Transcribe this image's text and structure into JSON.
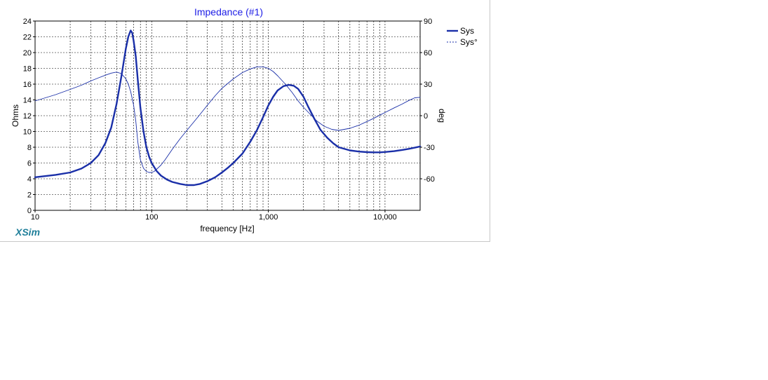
{
  "app": {
    "brand": "XSim"
  },
  "chart_data": {
    "type": "line",
    "title": "Impedance (#1)",
    "xlabel": "frequency [Hz]",
    "ylabel": "Ohms",
    "y2label": "deg",
    "xscale": "log",
    "xlim": [
      10,
      20000
    ],
    "ylim": [
      0,
      24
    ],
    "y2lim": [
      -90,
      90
    ],
    "grid": true,
    "legend_position": "top-right",
    "x_ticks": [
      {
        "value": 10,
        "label": "10"
      },
      {
        "value": 100,
        "label": "100"
      },
      {
        "value": 1000,
        "label": "1,000"
      },
      {
        "value": 10000,
        "label": "10,000"
      }
    ],
    "y_ticks": [
      {
        "value": 0,
        "label": "0"
      },
      {
        "value": 2,
        "label": "2"
      },
      {
        "value": 4,
        "label": "4"
      },
      {
        "value": 6,
        "label": "6"
      },
      {
        "value": 8,
        "label": "8"
      },
      {
        "value": 10,
        "label": "10"
      },
      {
        "value": 12,
        "label": "12"
      },
      {
        "value": 14,
        "label": "14"
      },
      {
        "value": 16,
        "label": "16"
      },
      {
        "value": 18,
        "label": "18"
      },
      {
        "value": 20,
        "label": "20"
      },
      {
        "value": 22,
        "label": "22"
      },
      {
        "value": 24,
        "label": "24"
      }
    ],
    "y2_ticks": [
      {
        "value": 90,
        "label": "90"
      },
      {
        "value": 60,
        "label": "60"
      },
      {
        "value": 30,
        "label": "30"
      },
      {
        "value": 0,
        "label": "0"
      },
      {
        "value": -30,
        "label": "-30"
      },
      {
        "value": -60,
        "label": "-60"
      }
    ],
    "series": [
      {
        "name": "Sys",
        "axis": "left",
        "color": "#1a2fa8",
        "style": "solid-thick",
        "x": [
          10,
          15,
          20,
          25,
          30,
          35,
          40,
          45,
          50,
          55,
          60,
          63,
          66,
          68,
          70,
          73,
          76,
          80,
          85,
          90,
          95,
          100,
          110,
          120,
          135,
          150,
          175,
          200,
          230,
          260,
          300,
          350,
          400,
          450,
          500,
          600,
          700,
          800,
          900,
          1000,
          1100,
          1200,
          1350,
          1500,
          1650,
          1800,
          2000,
          2200,
          2500,
          2800,
          3200,
          3600,
          4000,
          5000,
          6000,
          7000,
          8000,
          9000,
          10000,
          12000,
          14000,
          16000,
          18000,
          20000
        ],
        "values": [
          4.2,
          4.5,
          4.8,
          5.3,
          6.0,
          7.0,
          8.5,
          10.5,
          13.5,
          17.0,
          20.5,
          22.0,
          22.8,
          22.5,
          21.5,
          19.5,
          16.5,
          13.0,
          10.0,
          8.0,
          6.8,
          6.0,
          5.0,
          4.4,
          3.9,
          3.6,
          3.35,
          3.2,
          3.2,
          3.35,
          3.7,
          4.2,
          4.8,
          5.4,
          6.0,
          7.2,
          8.7,
          10.2,
          11.8,
          13.3,
          14.4,
          15.2,
          15.75,
          15.9,
          15.8,
          15.4,
          14.4,
          13.1,
          11.5,
          10.2,
          9.2,
          8.5,
          8.0,
          7.6,
          7.45,
          7.38,
          7.35,
          7.35,
          7.4,
          7.5,
          7.65,
          7.8,
          7.95,
          8.1
        ]
      },
      {
        "name": "Sys°",
        "axis": "right",
        "color": "#1a2fa8",
        "style": "solid-thin",
        "x": [
          10,
          15,
          20,
          25,
          30,
          35,
          40,
          45,
          50,
          55,
          60,
          63,
          66,
          70,
          73,
          76,
          80,
          85,
          90,
          95,
          100,
          105,
          110,
          120,
          130,
          150,
          175,
          200,
          250,
          300,
          350,
          400,
          500,
          600,
          700,
          800,
          900,
          1000,
          1100,
          1200,
          1400,
          1600,
          1800,
          2000,
          2300,
          2600,
          3000,
          3500,
          4000,
          5000,
          6000,
          7000,
          8000,
          9000,
          10000,
          12000,
          14000,
          16000,
          18000,
          20000
        ],
        "values": [
          14,
          20,
          25,
          29,
          33,
          36,
          38.5,
          40.5,
          41.5,
          40,
          35,
          30,
          23,
          10,
          -5,
          -25,
          -42,
          -50,
          -53,
          -54,
          -54,
          -53,
          -51,
          -47,
          -42,
          -32,
          -22,
          -14,
          -1,
          10,
          19,
          26,
          35,
          41,
          44.5,
          46.5,
          46.5,
          45,
          42,
          38,
          30,
          22,
          14,
          8,
          1,
          -5,
          -10,
          -13,
          -14,
          -12,
          -9,
          -5.5,
          -2.5,
          0.5,
          3,
          7.5,
          11,
          14.5,
          17,
          17.5
        ]
      }
    ]
  }
}
